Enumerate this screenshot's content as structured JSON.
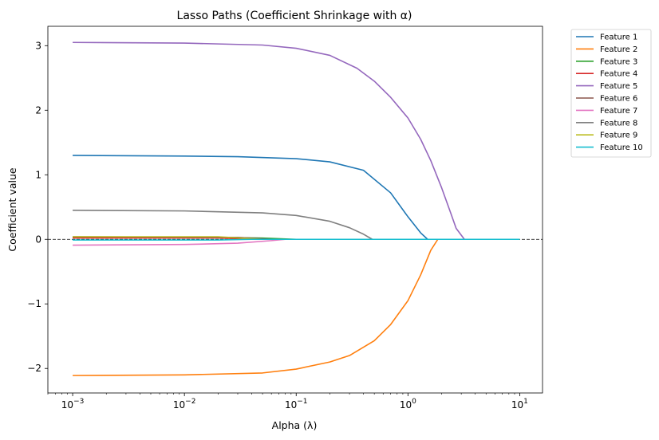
{
  "chart_data": {
    "type": "line",
    "title": "Lasso Paths (Coefficient Shrinkage with α)",
    "xlabel": "Alpha (λ)",
    "ylabel": "Coefficient value",
    "xscale": "log",
    "xlim": [
      0.0006,
      16
    ],
    "ylim": [
      -2.38,
      3.3
    ],
    "x_ticks": [
      0.001,
      0.01,
      0.1,
      1,
      10
    ],
    "x_tick_labels": [
      {
        "base": "10",
        "exp": "−3"
      },
      {
        "base": "10",
        "exp": "−2"
      },
      {
        "base": "10",
        "exp": "−1"
      },
      {
        "base": "10",
        "exp": "0"
      },
      {
        "base": "10",
        "exp": "1"
      }
    ],
    "y_ticks": [
      -2,
      -1,
      0,
      1,
      2,
      3
    ],
    "y_tick_labels": [
      "−2",
      "−1",
      "0",
      "1",
      "2",
      "3"
    ],
    "zero_line": true,
    "legend_position": "outside-top-right",
    "series": [
      {
        "name": "Feature 1",
        "color": "#1f77b4",
        "x": [
          0.001,
          0.01,
          0.03,
          0.1,
          0.2,
          0.4,
          0.7,
          1.0,
          1.3,
          1.5,
          10
        ],
        "y": [
          1.3,
          1.29,
          1.28,
          1.25,
          1.2,
          1.07,
          0.72,
          0.35,
          0.1,
          0.0,
          0.0
        ]
      },
      {
        "name": "Feature 2",
        "color": "#ff7f0e",
        "x": [
          0.001,
          0.01,
          0.05,
          0.1,
          0.2,
          0.3,
          0.5,
          0.7,
          1.0,
          1.3,
          1.6,
          1.85,
          2.2,
          10
        ],
        "y": [
          -2.11,
          -2.1,
          -2.07,
          -2.01,
          -1.9,
          -1.8,
          -1.57,
          -1.32,
          -0.95,
          -0.55,
          -0.17,
          0.0,
          0.0,
          0.0
        ]
      },
      {
        "name": "Feature 3",
        "color": "#2ca02c",
        "x": [
          0.001,
          0.02,
          0.05,
          0.1,
          10
        ],
        "y": [
          0.03,
          0.03,
          0.02,
          0.0,
          0.0
        ]
      },
      {
        "name": "Feature 4",
        "color": "#d62728",
        "x": [
          0.001,
          0.02,
          0.05,
          10
        ],
        "y": [
          0.02,
          0.02,
          0.0,
          0.0
        ]
      },
      {
        "name": "Feature 5",
        "color": "#9467bd",
        "x": [
          0.001,
          0.01,
          0.05,
          0.1,
          0.2,
          0.35,
          0.5,
          0.7,
          1.0,
          1.3,
          1.6,
          2.0,
          2.4,
          2.7,
          3.2,
          10
        ],
        "y": [
          3.05,
          3.04,
          3.01,
          2.96,
          2.85,
          2.65,
          2.45,
          2.2,
          1.88,
          1.55,
          1.22,
          0.8,
          0.42,
          0.17,
          0.0,
          0.0
        ]
      },
      {
        "name": "Feature 6",
        "color": "#8c564b",
        "x": [
          0.001,
          0.03,
          0.06,
          10
        ],
        "y": [
          0.04,
          0.03,
          0.0,
          0.0
        ]
      },
      {
        "name": "Feature 7",
        "color": "#e377c2",
        "x": [
          0.001,
          0.01,
          0.03,
          0.06,
          0.08,
          10
        ],
        "y": [
          -0.09,
          -0.08,
          -0.06,
          -0.02,
          0.0,
          0.0
        ]
      },
      {
        "name": "Feature 8",
        "color": "#7f7f7f",
        "x": [
          0.001,
          0.01,
          0.05,
          0.1,
          0.2,
          0.3,
          0.4,
          0.48,
          10
        ],
        "y": [
          0.45,
          0.44,
          0.41,
          0.37,
          0.28,
          0.18,
          0.08,
          0.0,
          0.0
        ]
      },
      {
        "name": "Feature 9",
        "color": "#bcbd22",
        "x": [
          0.001,
          0.02,
          0.05,
          10
        ],
        "y": [
          0.04,
          0.04,
          0.0,
          0.0
        ]
      },
      {
        "name": "Feature 10",
        "color": "#17becf",
        "x": [
          0.001,
          0.02,
          0.04,
          10
        ],
        "y": [
          -0.01,
          -0.01,
          0.0,
          0.0
        ]
      }
    ]
  }
}
